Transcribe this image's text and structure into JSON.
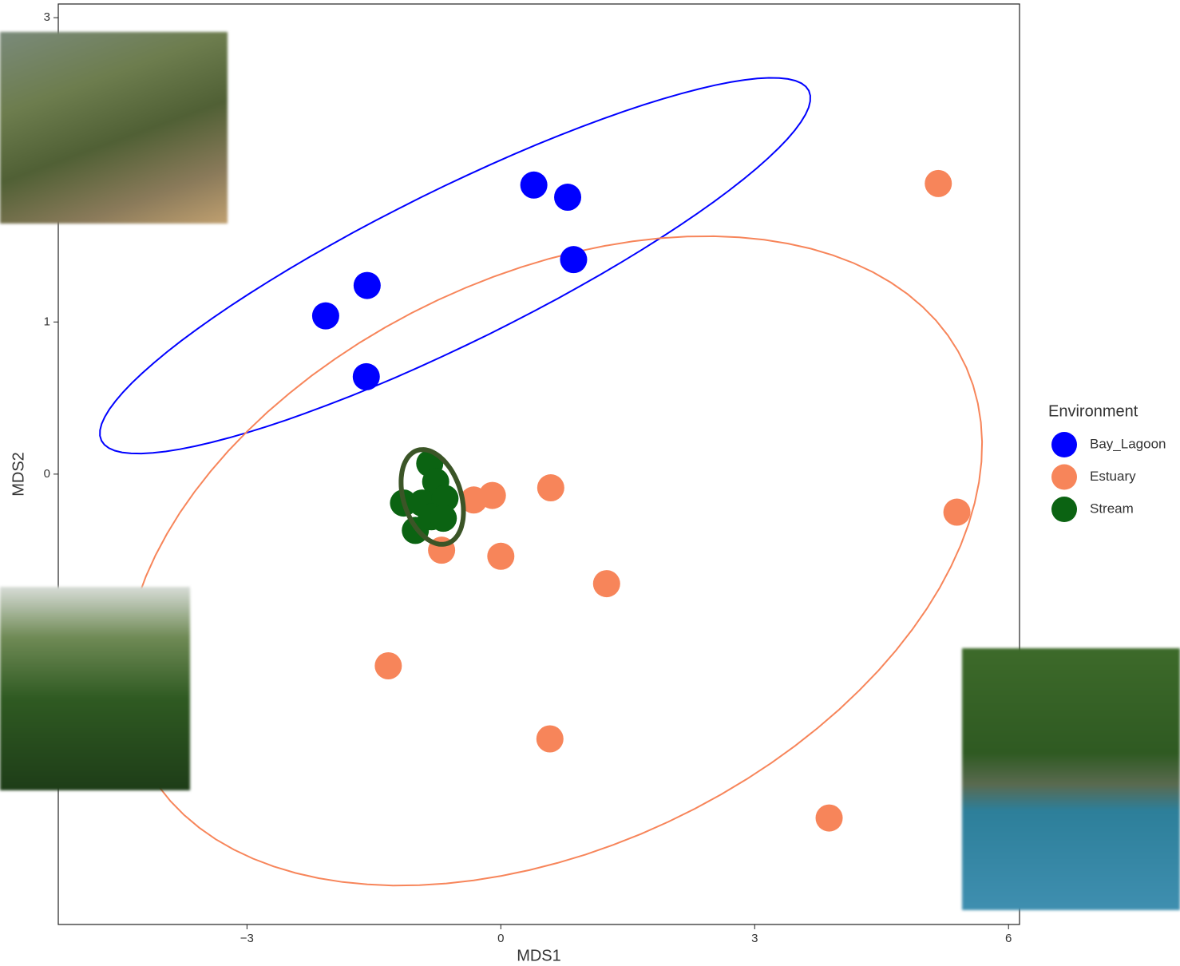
{
  "chart_data": {
    "type": "scatter",
    "x_label": "MDS1",
    "y_label": "MDS2",
    "xlim": [
      -5.23,
      6.13
    ],
    "ylim": [
      -2.96,
      3.09
    ],
    "xticks": [
      {
        "value": -3,
        "label": "−3"
      },
      0,
      3,
      6
    ],
    "yticks": [
      0,
      1,
      3
    ],
    "legend_title": "Environment",
    "legend": "right",
    "series": [
      {
        "name": "Bay_Lagoon",
        "color": "#0000ff",
        "x": [
          0.39,
          0.79,
          0.86,
          -1.58,
          -2.07,
          -1.59
        ],
        "y": [
          1.9,
          1.82,
          1.41,
          1.24,
          1.04,
          0.64
        ],
        "ellipse": {
          "center": [
            -0.54,
            1.37
          ],
          "axis1": [
            4.18,
            1.15
          ],
          "axis2": [
            -0.4,
            0.45
          ]
        }
      },
      {
        "name": "Estuary",
        "color": "#f7855a",
        "x": [
          5.17,
          5.39,
          0.59,
          -0.1,
          -0.32,
          -0.7,
          0.0,
          1.25,
          -1.33,
          0.58,
          3.88
        ],
        "y": [
          1.91,
          -0.25,
          -0.09,
          -0.14,
          -0.17,
          -0.5,
          -0.54,
          -0.72,
          -1.26,
          -1.74,
          -2.26
        ],
        "ellipse": {
          "center": [
            0.62,
            -0.57
          ],
          "axis1": [
            4.98,
            0.38
          ],
          "axis2": [
            0.94,
            2.1
          ]
        }
      },
      {
        "name": "Stream",
        "color": "#0b6312",
        "x": [
          -0.84,
          -0.77,
          -1.15,
          -0.93,
          -0.66,
          -1.01,
          -0.82,
          -0.68
        ],
        "y": [
          0.07,
          -0.05,
          -0.19,
          -0.19,
          -0.16,
          -0.37,
          -0.28,
          -0.29
        ],
        "ellipse": {
          "center": [
            -0.81,
            -0.15
          ],
          "axis1": [
            0.36,
            -0.03
          ],
          "axis2": [
            -0.08,
            0.31
          ],
          "color": "#3b5527"
        }
      }
    ]
  }
}
